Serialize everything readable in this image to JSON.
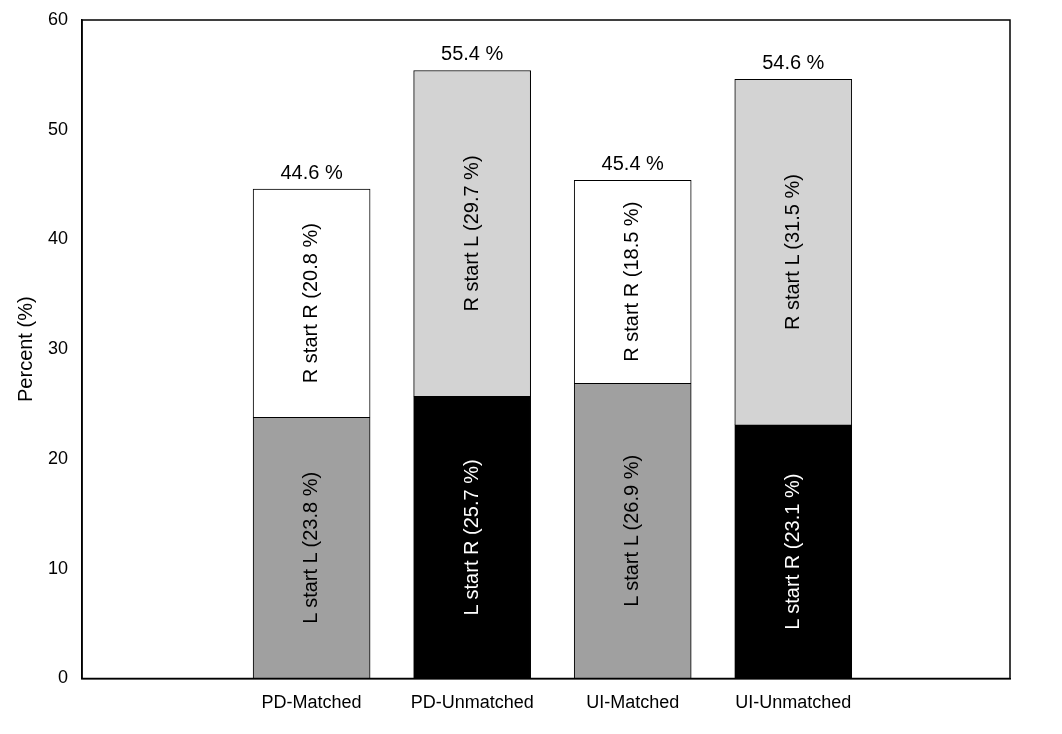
{
  "chart_data": {
    "type": "bar",
    "ylabel": "Percent (%)",
    "categories": [
      "PD-Matched",
      "PD-Unmatched",
      "UI-Matched",
      "UI-Unmatched"
    ],
    "stacked": true,
    "ylim": [
      0,
      60
    ],
    "yticks": [
      0,
      10,
      20,
      30,
      40,
      50,
      60
    ],
    "series": [
      {
        "values": [
          23.8,
          25.7,
          26.9,
          23.1
        ],
        "colors": [
          "#a0a0a0",
          "#000000",
          "#a0a0a0",
          "#000000"
        ],
        "value_labels": [
          "L start L (23.8 %)",
          "L start R (25.7 %)",
          "L start L (26.9 %)",
          "L start R (23.1 %)"
        ]
      },
      {
        "values": [
          20.8,
          29.7,
          18.5,
          31.5
        ],
        "colors": [
          "#ffffff",
          "#d3d3d3",
          "#ffffff",
          "#d3d3d3"
        ],
        "value_labels": [
          "R start R (20.8 %)",
          "R start L (29.7 %)",
          "R start R (18.5 %)",
          "R start L (31.5 %)"
        ]
      }
    ],
    "totals": [
      "44.6 %",
      "55.4 %",
      "45.4 %",
      "54.6 %"
    ]
  }
}
